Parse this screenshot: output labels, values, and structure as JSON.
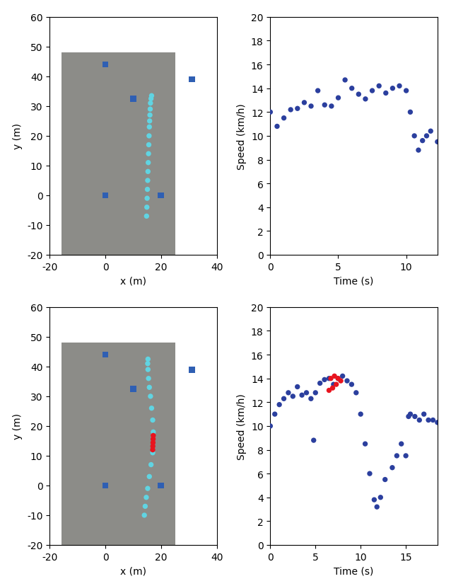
{
  "chart_data": [
    {
      "type": "map",
      "xlabel": "x (m)",
      "ylabel": "y (m)",
      "xlim": [
        -20,
        40
      ],
      "xticks": [
        -20,
        0,
        20,
        40
      ],
      "ylim": [
        -20,
        60
      ],
      "yticks": [
        -20,
        -10,
        0,
        10,
        20,
        30,
        40,
        50,
        60
      ],
      "grid": false,
      "series": [
        {
          "color": "#60d4e2",
          "marker": "circle",
          "x": [
            14.8,
            14.9,
            15.0,
            15.1,
            15.2,
            15.3,
            15.4,
            15.5,
            15.6,
            15.7,
            15.8,
            15.9,
            16.0,
            16.1,
            16.2,
            16.4,
            16.6
          ],
          "values": [
            -7,
            -4,
            -1,
            2,
            5,
            8,
            11,
            14,
            17,
            20,
            23,
            25,
            27,
            29,
            31,
            32.5,
            33.5
          ]
        },
        {
          "color": "#2f5fb3",
          "marker": "square",
          "x": [
            0,
            10,
            31,
            0,
            20
          ],
          "values": [
            44,
            32.5,
            39,
            0,
            0
          ]
        }
      ]
    },
    {
      "type": "scatter",
      "xlabel": "Time (s)",
      "ylabel": "Speed (km/h)",
      "xlim": [
        0,
        12.3
      ],
      "xticks": [
        0,
        5,
        10
      ],
      "ylim": [
        0,
        20
      ],
      "yticks": [
        0,
        2,
        4,
        6,
        8,
        10,
        12,
        14,
        16,
        18,
        20
      ],
      "grid": false,
      "series": [
        {
          "color": "#2b3f9e",
          "marker": "circle",
          "x": [
            0,
            0.5,
            1,
            1.5,
            2,
            2.5,
            3,
            3.5,
            4,
            4.5,
            5,
            5.5,
            6,
            6.5,
            7,
            7.5,
            8,
            8.5,
            9,
            9.5,
            10,
            10.3,
            10.6,
            10.9,
            11.2,
            11.5,
            11.8,
            12.3
          ],
          "values": [
            12,
            10.8,
            11.5,
            12.2,
            12.3,
            12.8,
            12.5,
            13.8,
            12.6,
            12.5,
            13.2,
            14.7,
            14,
            13.5,
            13.1,
            13.8,
            14.2,
            13.6,
            14,
            14.2,
            13.8,
            12,
            10,
            8.8,
            9.6,
            10,
            10.4,
            9.5
          ]
        }
      ]
    },
    {
      "type": "map",
      "xlabel": "x (m)",
      "ylabel": "y (m)",
      "xlim": [
        -20,
        40
      ],
      "xticks": [
        -20,
        0,
        20,
        40
      ],
      "ylim": [
        -20,
        60
      ],
      "yticks": [
        -20,
        -10,
        0,
        10,
        20,
        30,
        40,
        50,
        60
      ],
      "grid": false,
      "series": [
        {
          "color": "#60d4e2",
          "marker": "circle",
          "x": [
            14.0,
            14.3,
            14.7,
            15.2,
            15.8,
            16.4,
            17.0,
            17.2,
            17.0,
            16.6,
            16.2,
            15.8,
            15.5,
            15.3,
            15.2,
            15.3
          ],
          "values": [
            -10,
            -7,
            -4,
            -1,
            3,
            7,
            11,
            18,
            22,
            26,
            30,
            33,
            36,
            39,
            41,
            42.5
          ]
        },
        {
          "color": "#e8141e",
          "marker": "circle",
          "x": [
            17.0,
            17.05,
            17.1,
            17.15,
            17.2
          ],
          "values": [
            12,
            13.2,
            14.4,
            15.6,
            16.8
          ]
        },
        {
          "color": "#2f5fb3",
          "marker": "square",
          "x": [
            0,
            10,
            31,
            0,
            20
          ],
          "values": [
            44,
            32.5,
            39,
            0,
            0
          ]
        }
      ]
    },
    {
      "type": "scatter",
      "xlabel": "Time (s)",
      "ylabel": "Speed (km/h)",
      "xlim": [
        0,
        18.5
      ],
      "xticks": [
        0,
        5,
        10,
        15
      ],
      "ylim": [
        0,
        20
      ],
      "yticks": [
        0,
        2,
        4,
        6,
        8,
        10,
        12,
        14,
        16,
        18,
        20
      ],
      "grid": false,
      "series": [
        {
          "color": "#2b3f9e",
          "marker": "circle",
          "x": [
            0,
            0.5,
            1,
            1.5,
            2,
            2.5,
            3,
            3.5,
            4,
            4.5,
            4.8,
            5,
            5.5,
            6,
            6.5,
            7,
            7.5,
            8,
            8.5,
            9,
            9.5,
            10,
            10.5,
            11,
            11.5,
            11.8,
            12.2,
            12.7,
            13.5,
            14,
            14.5,
            15,
            15.3,
            15.5,
            16,
            16.5,
            17,
            17.5,
            18,
            18.5
          ],
          "values": [
            10,
            11,
            11.8,
            12.3,
            12.8,
            12.5,
            13.3,
            12.6,
            12.8,
            12.3,
            8.8,
            12.8,
            13.6,
            13.9,
            14,
            13.5,
            14,
            14.2,
            13.8,
            13.5,
            12.8,
            11,
            8.5,
            6,
            3.8,
            3.2,
            4,
            5.5,
            6.5,
            7.5,
            8.5,
            7.5,
            10.8,
            11,
            10.8,
            10.5,
            11,
            10.5,
            10.5,
            10.3
          ]
        },
        {
          "color": "#e8141e",
          "marker": "circle",
          "x": [
            6.5,
            6.7,
            6.9,
            7.1,
            7.3,
            7.5,
            7.8
          ],
          "values": [
            13,
            14,
            13.2,
            14.2,
            13.5,
            14,
            13.8
          ]
        }
      ]
    }
  ]
}
